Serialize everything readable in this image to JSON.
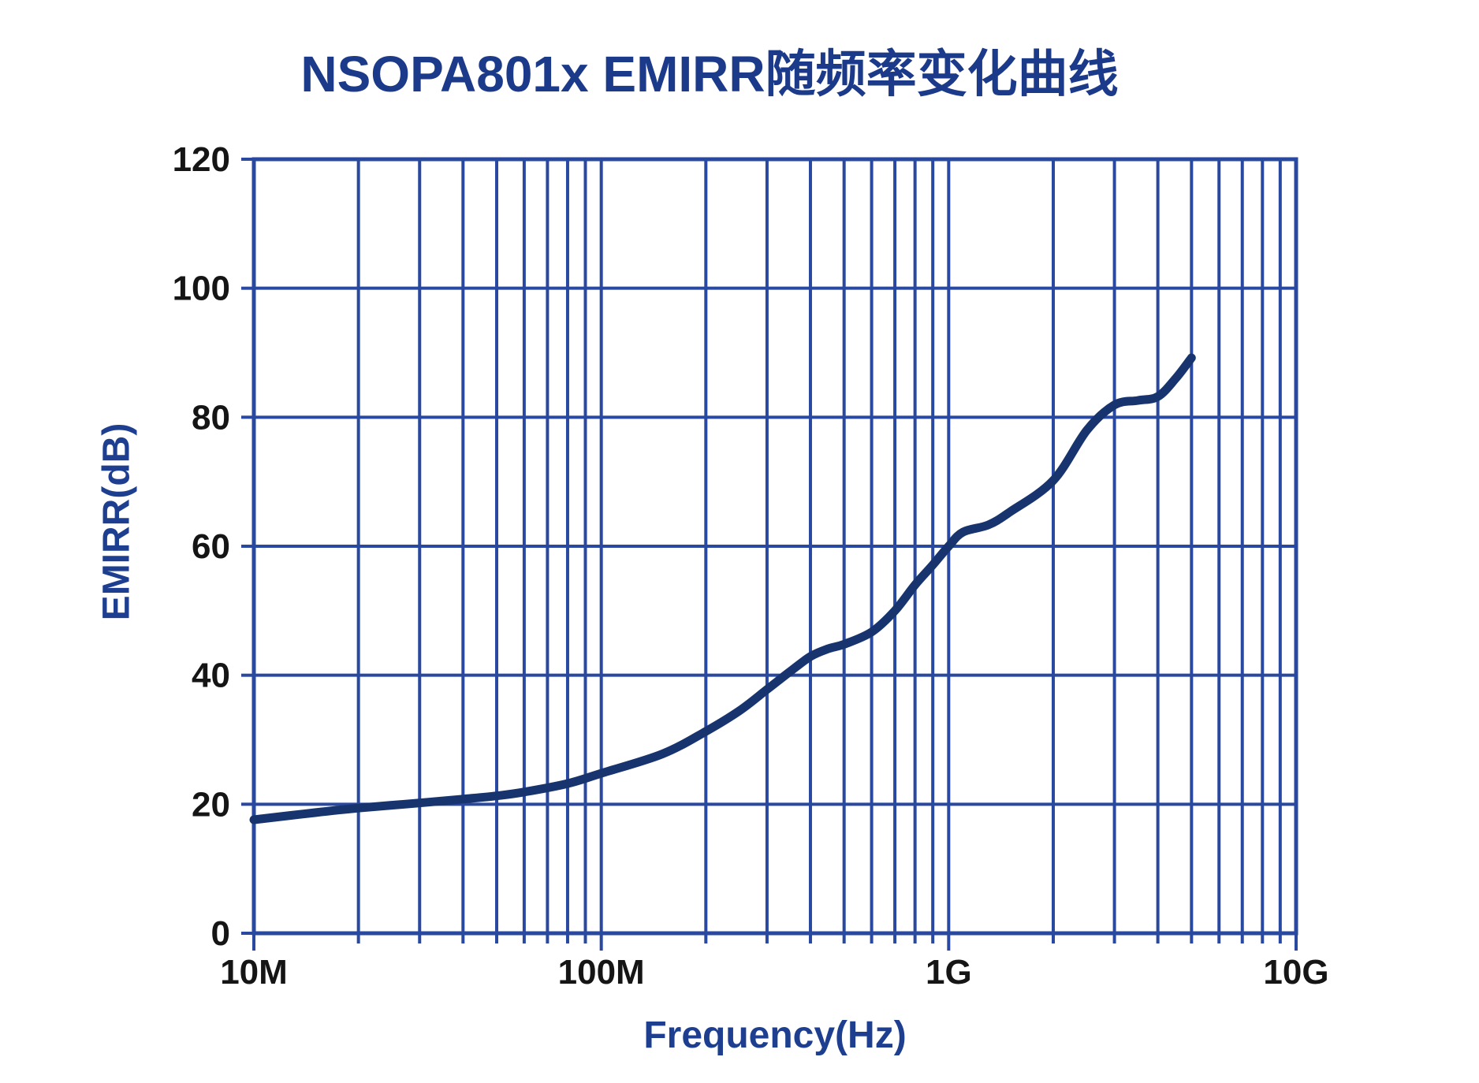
{
  "figure": {
    "background": "#ffffff"
  },
  "chart_data": {
    "type": "line",
    "title": "NSOPA801x EMIRR随频率变化曲线",
    "xlabel": "Frequency(Hz)",
    "ylabel": "EMIRR(dB)",
    "x_scale": "log",
    "xlim": [
      10000000,
      10000000000
    ],
    "ylim": [
      0,
      120
    ],
    "grid": {
      "horizontal_step": 20,
      "vertical_log_minors": true,
      "shown": true
    },
    "legend": {
      "shown": false
    },
    "x_ticks": [
      {
        "value": 10000000,
        "label": "10M"
      },
      {
        "value": 100000000,
        "label": "100M"
      },
      {
        "value": 1000000000,
        "label": "1G"
      },
      {
        "value": 10000000000,
        "label": "10G"
      }
    ],
    "y_ticks": [
      {
        "value": 0,
        "label": "0"
      },
      {
        "value": 20,
        "label": "20"
      },
      {
        "value": 40,
        "label": "40"
      },
      {
        "value": 60,
        "label": "60"
      },
      {
        "value": 80,
        "label": "80"
      },
      {
        "value": 100,
        "label": "100"
      },
      {
        "value": 120,
        "label": "120"
      }
    ],
    "colors": {
      "grid": "#2948a0",
      "frame": "#2948a0",
      "curve": "#17346f",
      "title": "#1c3a8a",
      "axis_title": "#1e3f8f",
      "tick_label": "#151515"
    },
    "series": [
      {
        "name": "EMIRR",
        "points": [
          [
            10000000.0,
            17.6
          ],
          [
            15000000.0,
            18.7
          ],
          [
            20000000.0,
            19.4
          ],
          [
            30000000.0,
            20.2
          ],
          [
            40000000.0,
            20.8
          ],
          [
            50000000.0,
            21.3
          ],
          [
            60000000.0,
            21.9
          ],
          [
            80000000.0,
            23.2
          ],
          [
            100000000.0,
            24.8
          ],
          [
            150000000.0,
            27.8
          ],
          [
            200000000.0,
            31.3
          ],
          [
            250000000.0,
            34.5
          ],
          [
            300000000.0,
            37.8
          ],
          [
            350000000.0,
            40.6
          ],
          [
            400000000.0,
            42.9
          ],
          [
            450000000.0,
            44.1
          ],
          [
            500000000.0,
            44.8
          ],
          [
            600000000.0,
            46.7
          ],
          [
            700000000.0,
            50.0
          ],
          [
            800000000.0,
            54.0
          ],
          [
            900000000.0,
            57.1
          ],
          [
            1000000000.0,
            60.0
          ],
          [
            1100000000.0,
            62.2
          ],
          [
            1300000000.0,
            63.3
          ],
          [
            1500000000.0,
            65.3
          ],
          [
            2000000000.0,
            70.2
          ],
          [
            2500000000.0,
            78.0
          ],
          [
            3000000000.0,
            81.9
          ],
          [
            3500000000.0,
            82.6
          ],
          [
            4000000000.0,
            83.2
          ],
          [
            4500000000.0,
            86.0
          ],
          [
            5000000000.0,
            89.2
          ]
        ]
      }
    ]
  }
}
